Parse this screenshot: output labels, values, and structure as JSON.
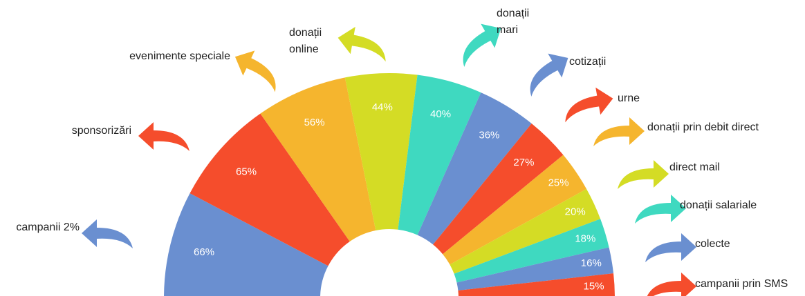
{
  "chart_data": {
    "type": "semi-donut",
    "categories": [
      "campanii 2%",
      "sponsorizări",
      "evenimente speciale",
      "donații online",
      "donații mari",
      "cotizații",
      "urne",
      "donații prin debit direct",
      "direct mail",
      "donații salariale",
      "colecte",
      "campanii prin SMS"
    ],
    "values": [
      66,
      65,
      56,
      44,
      40,
      36,
      27,
      25,
      20,
      18,
      16,
      15
    ],
    "value_labels": [
      "66%",
      "65%",
      "56%",
      "44%",
      "40%",
      "36%",
      "27%",
      "25%",
      "20%",
      "18%",
      "16%",
      "15%"
    ],
    "colors": [
      "#6a8fd0",
      "#f54d2c",
      "#f5b52e",
      "#d4dc25",
      "#3fd9c0",
      "#6a8fd0",
      "#f54d2c",
      "#f5b52e",
      "#d4dc25",
      "#3fd9c0",
      "#6a8fd0",
      "#f54d2c"
    ]
  }
}
